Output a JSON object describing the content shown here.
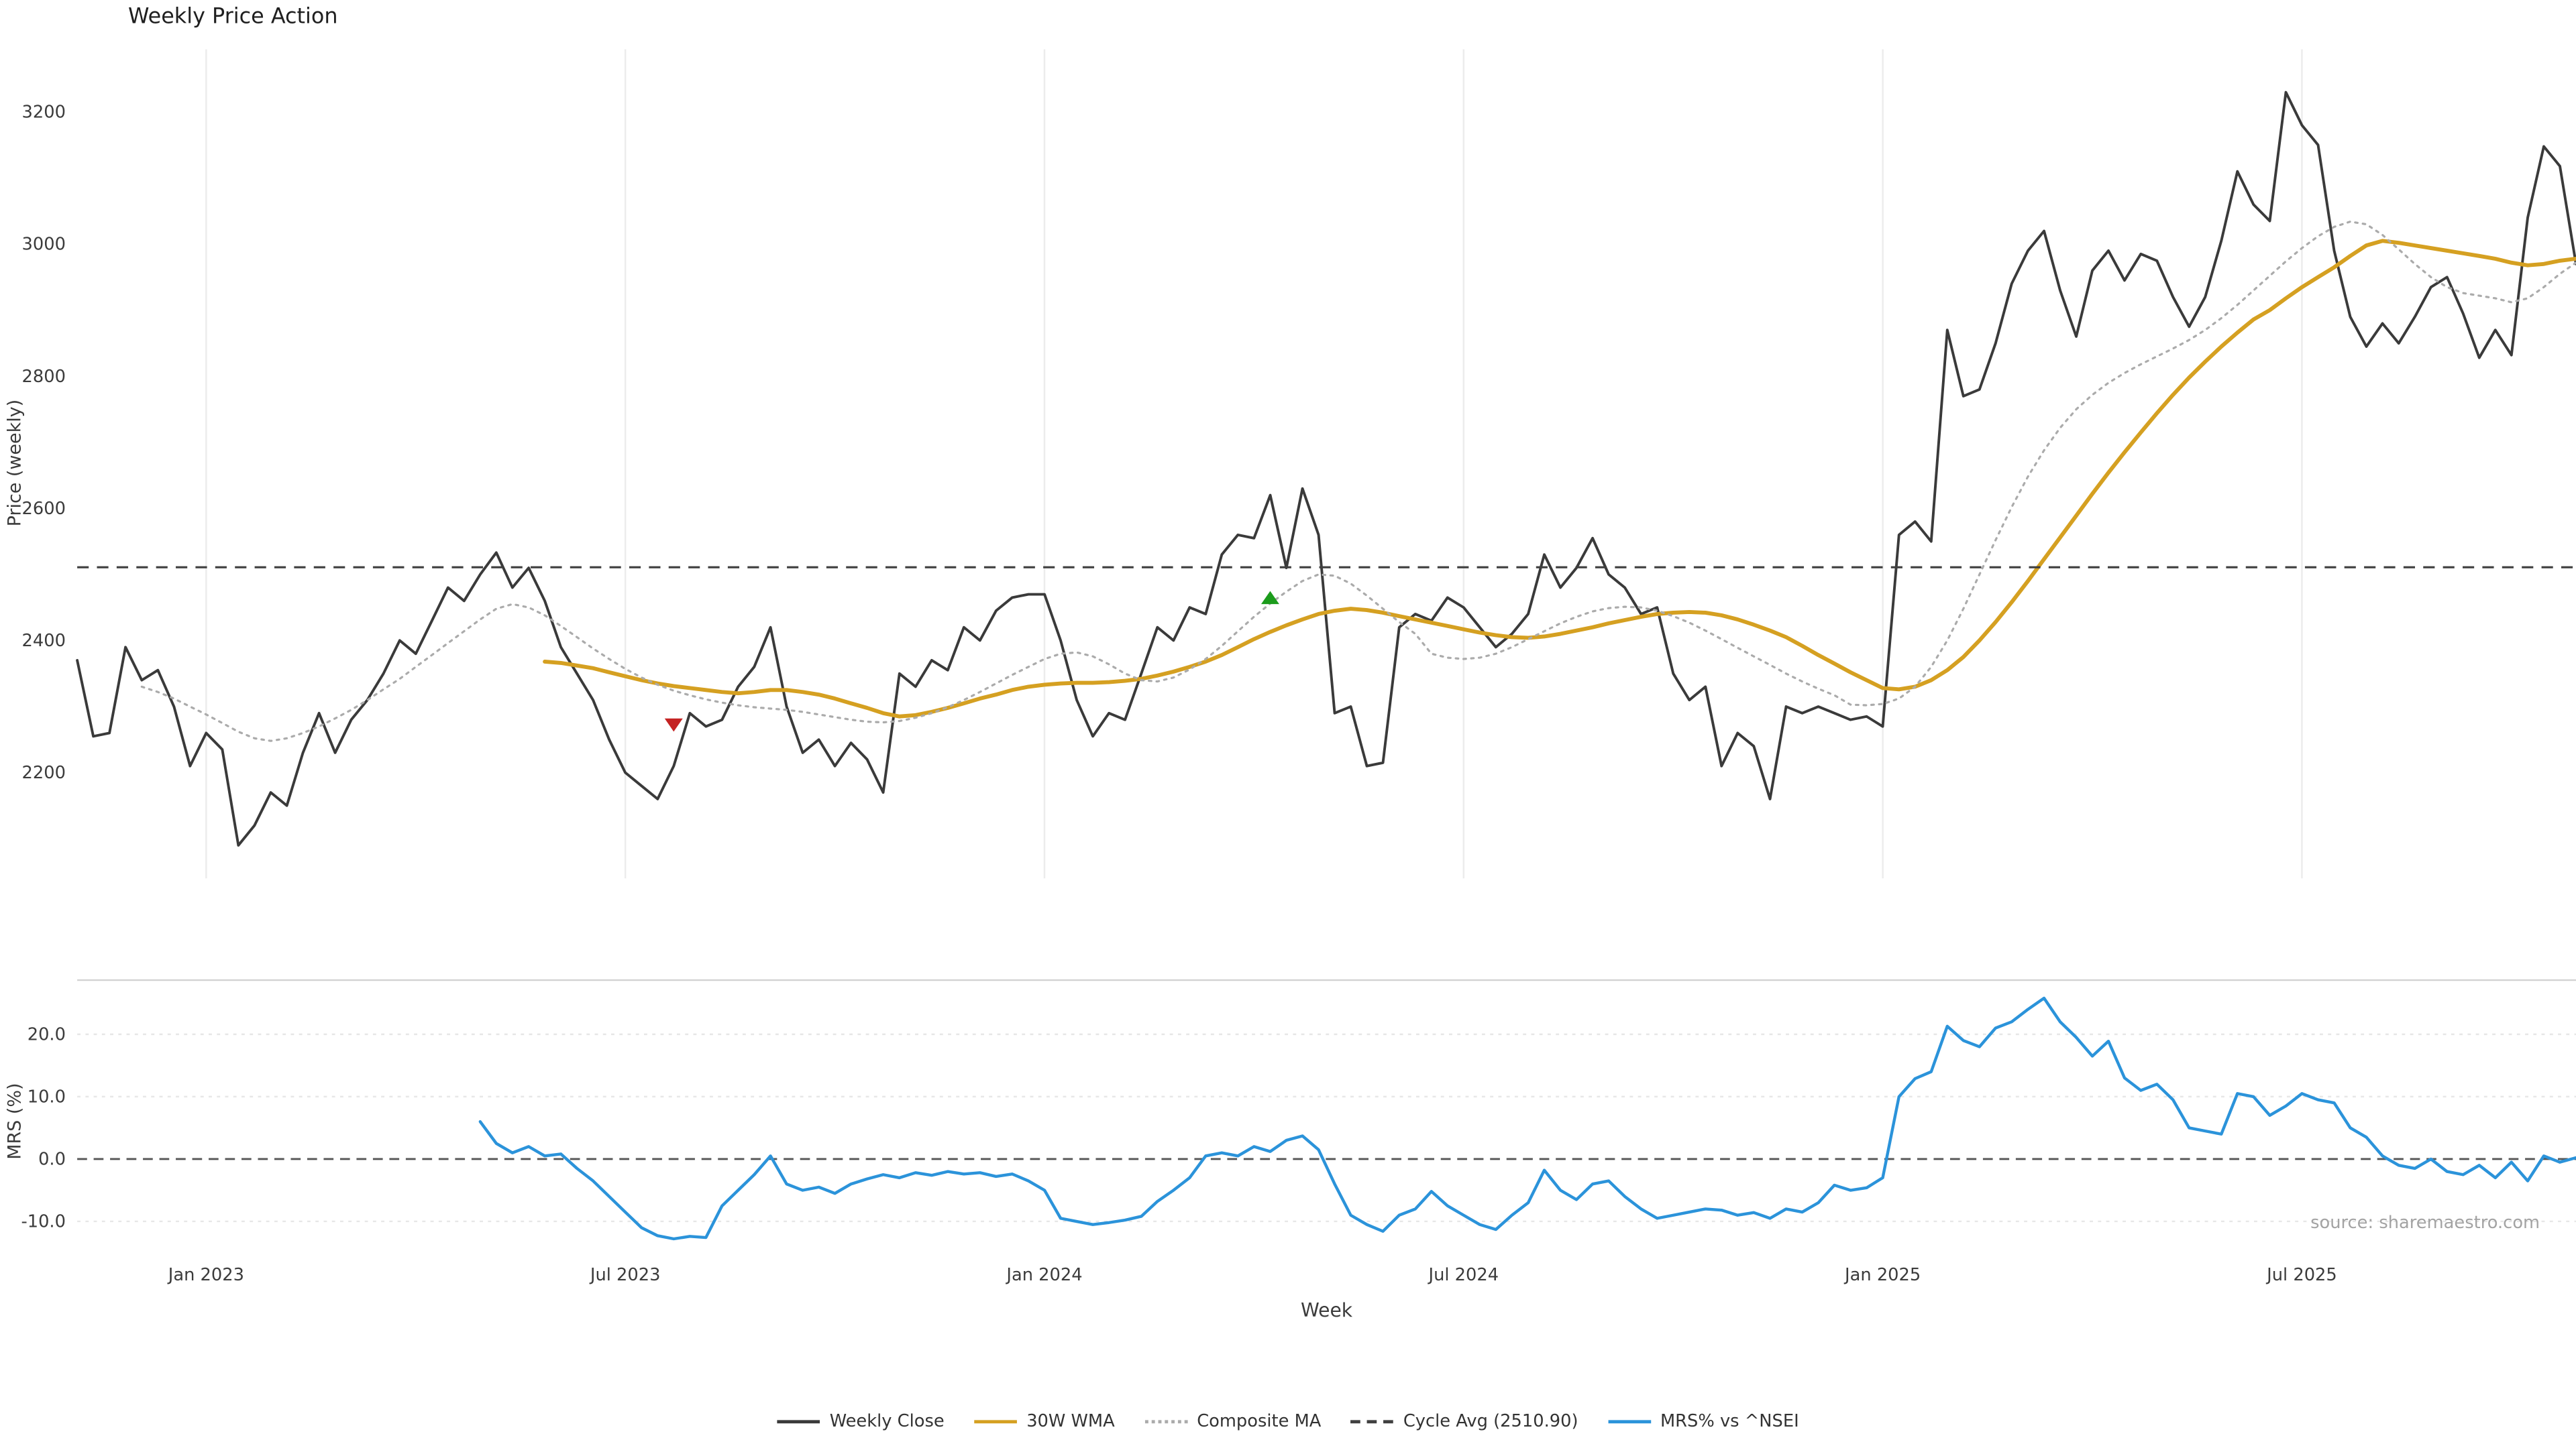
{
  "chart_data": {
    "type": "line",
    "title": "Weekly Price Action",
    "xlabel": "Week",
    "source_text": "source: sharemaestro.com",
    "n_weeks": 156,
    "x_tick_labels": [
      "Jan 2023",
      "Jul 2023",
      "Jan 2024",
      "Jul 2024",
      "Jan 2025",
      "Jul 2025"
    ],
    "x_tick_index": [
      8,
      34,
      60,
      86,
      112,
      138
    ],
    "panels": [
      {
        "name": "price",
        "ylabel": "Price (weekly)",
        "ylim": [
          2040,
          3295
        ],
        "yticks": [
          2200,
          2400,
          2600,
          2800,
          3000,
          3200
        ],
        "cycle_avg": 2510.9
      },
      {
        "name": "mrs",
        "ylabel": "MRS (%)",
        "ylim": [
          -15.8,
          27.9
        ],
        "yticks": [
          -10.0,
          0.0,
          10.0,
          20.0
        ],
        "zero_line": 0,
        "grid_levels": [
          20,
          10,
          -10
        ]
      }
    ],
    "series": [
      {
        "name": "Weekly Close",
        "color": "#3a3a3a",
        "style": "solid",
        "width": 1.6,
        "panel": "price",
        "start_index": 0,
        "values": [
          2370,
          2255,
          2260,
          2390,
          2340,
          2355,
          2300,
          2210,
          2260,
          2235,
          2090,
          2120,
          2170,
          2150,
          2230,
          2290,
          2230,
          2280,
          2310,
          2350,
          2400,
          2380,
          2430,
          2480,
          2460,
          2500,
          2533,
          2480,
          2510,
          2460,
          2390,
          2350,
          2310,
          2250,
          2200,
          2180,
          2160,
          2210,
          2290,
          2270,
          2280,
          2330,
          2360,
          2420,
          2300,
          2230,
          2250,
          2210,
          2245,
          2220,
          2170,
          2350,
          2330,
          2370,
          2355,
          2420,
          2400,
          2445,
          2465,
          2470,
          2470,
          2400,
          2310,
          2255,
          2290,
          2280,
          2350,
          2420,
          2400,
          2450,
          2440,
          2530,
          2560,
          2555,
          2620,
          2510,
          2630,
          2560,
          2290,
          2300,
          2210,
          2215,
          2420,
          2440,
          2430,
          2465,
          2450,
          2420,
          2390,
          2410,
          2440,
          2530,
          2480,
          2510,
          2555,
          2500,
          2480,
          2440,
          2450,
          2350,
          2310,
          2330,
          2210,
          2260,
          2240,
          2160,
          2300,
          2290,
          2300,
          2290,
          2280,
          2285,
          2270,
          2560,
          2580,
          2550,
          2870,
          2770,
          2780,
          2850,
          2940,
          2990,
          3020,
          2930,
          2860,
          2960,
          2990,
          2945,
          2985,
          2975,
          2920,
          2875,
          2920,
          3005,
          3110,
          3060,
          3035,
          3230,
          3180,
          3150,
          2990,
          2890,
          2845,
          2880,
          2850,
          2890,
          2935,
          2950,
          2895,
          2828,
          2870,
          2832,
          3040,
          3148,
          3118,
          2970
        ]
      },
      {
        "name": "30W WMA",
        "color": "#d5a021",
        "style": "solid",
        "width": 2.4,
        "panel": "price",
        "start_index": 29,
        "values": [
          2368,
          2366,
          2362,
          2358,
          2352,
          2346,
          2340,
          2335,
          2331,
          2328,
          2325,
          2322,
          2320,
          2322,
          2325,
          2325,
          2322,
          2318,
          2312,
          2305,
          2298,
          2290,
          2285,
          2287,
          2292,
          2298,
          2305,
          2312,
          2318,
          2325,
          2330,
          2333,
          2335,
          2336,
          2336,
          2337,
          2339,
          2342,
          2347,
          2353,
          2360,
          2368,
          2378,
          2390,
          2402,
          2413,
          2423,
          2432,
          2440,
          2445,
          2448,
          2446,
          2442,
          2437,
          2432,
          2427,
          2422,
          2417,
          2412,
          2408,
          2405,
          2404,
          2406,
          2410,
          2415,
          2420,
          2426,
          2431,
          2436,
          2440,
          2442,
          2443,
          2442,
          2438,
          2432,
          2424,
          2415,
          2405,
          2392,
          2378,
          2365,
          2352,
          2340,
          2328,
          2326,
          2330,
          2340,
          2355,
          2375,
          2400,
          2428,
          2458,
          2490,
          2523,
          2556,
          2589,
          2622,
          2654,
          2685,
          2715,
          2744,
          2772,
          2798,
          2822,
          2845,
          2866,
          2886,
          2900,
          2918,
          2935,
          2950,
          2965,
          2982,
          2998,
          3005,
          3002,
          2998,
          2994,
          2990,
          2986,
          2982,
          2978,
          2972,
          2968,
          2970,
          2975,
          2978
        ]
      },
      {
        "name": "Composite MA",
        "color": "#ababab",
        "style": "dotted",
        "width": 1.3,
        "panel": "price",
        "start_index": 4,
        "values": [
          2330,
          2322,
          2312,
          2300,
          2288,
          2275,
          2262,
          2252,
          2248,
          2252,
          2260,
          2270,
          2282,
          2295,
          2310,
          2326,
          2342,
          2360,
          2378,
          2396,
          2414,
          2432,
          2448,
          2455,
          2450,
          2438,
          2422,
          2405,
          2388,
          2372,
          2357,
          2344,
          2333,
          2324,
          2317,
          2311,
          2306,
          2302,
          2299,
          2297,
          2295,
          2292,
          2288,
          2284,
          2280,
          2277,
          2276,
          2278,
          2283,
          2290,
          2299,
          2310,
          2322,
          2335,
          2348,
          2360,
          2372,
          2380,
          2382,
          2376,
          2364,
          2350,
          2340,
          2338,
          2344,
          2356,
          2372,
          2392,
          2414,
          2436,
          2456,
          2474,
          2490,
          2500,
          2498,
          2486,
          2468,
          2448,
          2428,
          2410,
          2380,
          2374,
          2372,
          2374,
          2380,
          2390,
          2402,
          2414,
          2426,
          2436,
          2444,
          2449,
          2451,
          2450,
          2445,
          2437,
          2427,
          2415,
          2402,
          2389,
          2376,
          2363,
          2350,
          2338,
          2327,
          2317,
          2303,
          2302,
          2304,
          2312,
          2330,
          2360,
          2400,
          2448,
          2500,
          2552,
          2602,
          2648,
          2688,
          2722,
          2750,
          2772,
          2790,
          2805,
          2818,
          2830,
          2842,
          2855,
          2870,
          2888,
          2908,
          2930,
          2952,
          2974,
          2994,
          3012,
          3026,
          3034,
          3030,
          3014,
          2992,
          2970,
          2950,
          2935,
          2926,
          2922,
          2918,
          2912,
          2918,
          2935,
          2955,
          2972
        ]
      },
      {
        "name": "Cycle Avg (2510.90)",
        "color": "#3f3f3f",
        "style": "dashed",
        "width": 1.3,
        "panel": "price",
        "type": "hline",
        "value": 2510.9
      },
      {
        "name": "MRS% vs ^NSEI",
        "color": "#2b93da",
        "style": "solid",
        "width": 1.8,
        "panel": "mrs",
        "start_index": 25,
        "values": [
          6.0,
          2.5,
          1.0,
          2.0,
          0.5,
          0.8,
          -1.5,
          -3.5,
          -6.0,
          -8.5,
          -11.0,
          -12.3,
          -12.8,
          -12.4,
          -12.6,
          -7.5,
          -5.0,
          -2.5,
          0.5,
          -4.0,
          -5.0,
          -4.5,
          -5.5,
          -4.0,
          -3.2,
          -2.5,
          -3.0,
          -2.2,
          -2.6,
          -2.0,
          -2.4,
          -2.2,
          -2.8,
          -2.4,
          -3.5,
          -5.0,
          -9.5,
          -10.0,
          -10.5,
          -10.2,
          -9.8,
          -9.2,
          -6.8,
          -5.0,
          -3.0,
          0.5,
          1.0,
          0.5,
          2.0,
          1.2,
          3.0,
          3.7,
          1.5,
          -4.0,
          -9.0,
          -10.5,
          -11.6,
          -9.0,
          -8.0,
          -5.2,
          -7.5,
          -9.0,
          -10.5,
          -11.3,
          -9.0,
          -7.0,
          -1.8,
          -5.0,
          -6.5,
          -4.0,
          -3.5,
          -6.0,
          -8.0,
          -9.5,
          -9.0,
          -8.5,
          -8.0,
          -8.2,
          -9.0,
          -8.6,
          -9.5,
          -8.0,
          -8.5,
          -7.0,
          -4.2,
          -5.0,
          -4.6,
          -3.0,
          10.0,
          12.9,
          14.0,
          21.3,
          19.0,
          18.0,
          21.0,
          22.0,
          24.0,
          25.8,
          22.0,
          19.5,
          16.5,
          18.9,
          13.0,
          11.0,
          12.0,
          9.5,
          5.0,
          4.5,
          4.0,
          10.5,
          10.0,
          7.0,
          8.5,
          10.5,
          9.5,
          9.0,
          5.0,
          3.5,
          0.5,
          -1.0,
          -1.5,
          0.0,
          -2.0,
          -2.5,
          -1.0,
          -3.0,
          -0.5,
          -3.5,
          0.5,
          -0.5,
          0.2
        ]
      }
    ],
    "markers": [
      {
        "type": "sell-signal",
        "shape": "triangle-down",
        "color": "#c42222",
        "index": 37,
        "value": 2272
      },
      {
        "type": "buy-signal",
        "shape": "triangle-up",
        "color": "#1c9c1c",
        "index": 74,
        "value": 2465
      }
    ],
    "legend": [
      {
        "label": "Weekly Close",
        "color": "#3a3a3a",
        "style": "solid"
      },
      {
        "label": "30W WMA",
        "color": "#d5a021",
        "style": "solid"
      },
      {
        "label": "Composite MA",
        "color": "#ababab",
        "style": "dotted"
      },
      {
        "label": "Cycle Avg (2510.90)",
        "color": "#3f3f3f",
        "style": "dashed"
      },
      {
        "label": "MRS% vs ^NSEI",
        "color": "#2b93da",
        "style": "solid"
      }
    ]
  }
}
